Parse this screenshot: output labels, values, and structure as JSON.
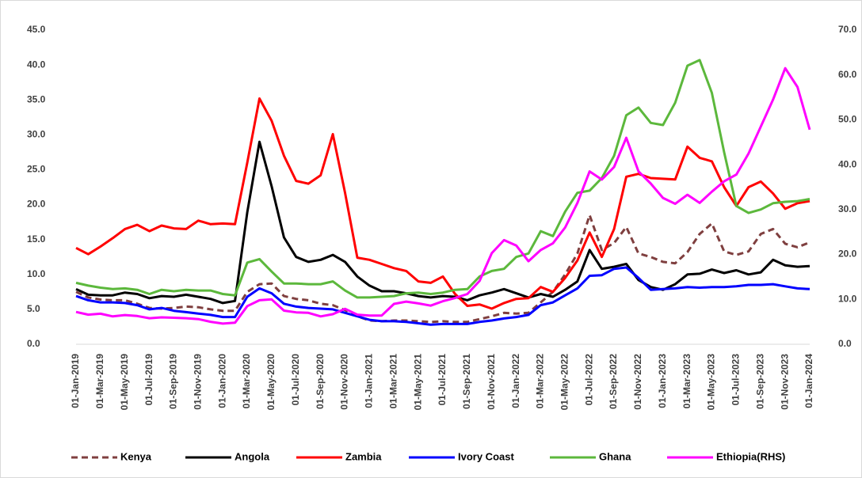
{
  "chart_data": {
    "type": "line",
    "categories": [
      "01-Jan-2019",
      null,
      "01-Mar-2019",
      null,
      "01-May-2019",
      null,
      "01-Jul-2019",
      null,
      "01-Sep-2019",
      null,
      "01-Nov-2019",
      null,
      "01-Jan-2020",
      null,
      "01-Mar-2020",
      null,
      "01-May-2020",
      null,
      "01-Jul-2020",
      null,
      "01-Sep-2020",
      null,
      "01-Nov-2020",
      null,
      "01-Jan-2021",
      null,
      "01-Mar-2021",
      null,
      "01-May-2021",
      null,
      "01-Jul-2021",
      null,
      "01-Sep-2021",
      null,
      "01-Nov-2021",
      null,
      "01-Jan-2022",
      null,
      "01-Mar-2022",
      null,
      "01-May-2022",
      null,
      "01-Jul-2022",
      null,
      "01-Sep-2022",
      null,
      "01-Nov-2022",
      null,
      "01-Jan-2023",
      null,
      "01-Mar-2023",
      null,
      "01-May-2023",
      null,
      "01-Jul-2023",
      null,
      "01-Sep-2023",
      null,
      "01-Nov-2023",
      null,
      "01-Jan-2024"
    ],
    "ylim": [
      0,
      45
    ],
    "yticks": [
      {
        "value": 0,
        "label": "0.0"
      },
      {
        "value": 5,
        "label": "5.0"
      },
      {
        "value": 10,
        "label": "10.0"
      },
      {
        "value": 15,
        "label": "15.0"
      },
      {
        "value": 20,
        "label": "20.0"
      },
      {
        "value": 25,
        "label": "25.0"
      },
      {
        "value": 30,
        "label": "30.0"
      },
      {
        "value": 35,
        "label": "35.0"
      },
      {
        "value": 40,
        "label": "40.0"
      },
      {
        "value": 45,
        "label": "45.0"
      }
    ],
    "y2lim": [
      0,
      70
    ],
    "y2ticks": [
      {
        "value": 0,
        "label": "0.0"
      },
      {
        "value": 10,
        "label": "10.0"
      },
      {
        "value": 20,
        "label": "20.0"
      },
      {
        "value": 30,
        "label": "30.0"
      },
      {
        "value": 40,
        "label": "40.0"
      },
      {
        "value": 50,
        "label": "50.0"
      },
      {
        "value": 60,
        "label": "60.0"
      },
      {
        "value": 70,
        "label": "70.0"
      }
    ],
    "legend": "bottom",
    "series": [
      {
        "name": "Kenya",
        "color": "#7f3f3f",
        "dashed": true,
        "values": [
          7.5,
          6.7,
          6.4,
          6.3,
          6.3,
          5.8,
          5.2,
          5.1,
          5.2,
          5.4,
          5.3,
          5.0,
          4.8,
          4.8,
          7.5,
          8.6,
          8.7,
          6.9,
          6.5,
          6.3,
          5.8,
          5.6,
          4.9,
          4.0,
          3.4,
          3.3,
          3.4,
          3.4,
          3.3,
          3.2,
          3.3,
          3.2,
          3.2,
          3.6,
          4.0,
          4.5,
          4.4,
          4.5,
          6.0,
          7.5,
          10.0,
          13.0,
          18.5,
          13.5,
          14.5,
          16.8,
          13.0,
          12.5,
          11.8,
          11.6,
          13.2,
          15.8,
          17.3,
          13.3,
          12.8,
          13.3,
          15.8,
          16.5,
          14.4,
          13.9,
          14.6
        ]
      },
      {
        "name": "Angola",
        "color": "#000000",
        "values": [
          7.9,
          7.1,
          7.0,
          7.0,
          7.4,
          7.2,
          6.6,
          6.9,
          6.8,
          7.1,
          6.8,
          6.5,
          5.9,
          6.2,
          18.9,
          29.0,
          22.6,
          15.3,
          12.5,
          11.8,
          12.1,
          12.8,
          11.8,
          9.7,
          8.4,
          7.6,
          7.6,
          7.3,
          6.9,
          6.7,
          6.9,
          6.8,
          6.3,
          7.0,
          7.4,
          7.9,
          7.3,
          6.7,
          7.2,
          6.8,
          7.8,
          9.0,
          13.5,
          10.8,
          11.1,
          11.5,
          9.2,
          8.2,
          7.8,
          8.6,
          10.0,
          10.1,
          10.7,
          10.2,
          10.6,
          10.0,
          10.3,
          12.1,
          11.3,
          11.1,
          11.2
        ]
      },
      {
        "name": "Zambia",
        "color": "#ff0000",
        "values": [
          13.8,
          12.9,
          14.0,
          15.2,
          16.5,
          17.1,
          16.2,
          17.0,
          16.6,
          16.5,
          17.7,
          17.2,
          17.3,
          17.2,
          26.0,
          35.2,
          32.0,
          27.0,
          23.4,
          23.0,
          24.2,
          30.1,
          21.7,
          12.4,
          12.1,
          11.5,
          10.9,
          10.5,
          9.0,
          8.8,
          9.7,
          7.2,
          5.5,
          5.7,
          5.1,
          5.9,
          6.5,
          6.6,
          8.2,
          7.5,
          9.5,
          12.0,
          16.0,
          12.5,
          16.5,
          24.0,
          24.4,
          23.8,
          23.7,
          23.6,
          28.3,
          26.7,
          26.2,
          22.5,
          19.8,
          22.5,
          23.3,
          21.6,
          19.4,
          20.2,
          20.5
        ]
      },
      {
        "name": "Ivory Coast",
        "color": "#0000ff",
        "values": [
          6.9,
          6.3,
          6.0,
          6.0,
          5.9,
          5.6,
          5.0,
          5.2,
          4.8,
          4.6,
          4.4,
          4.2,
          3.9,
          3.9,
          6.8,
          8.0,
          7.3,
          5.8,
          5.4,
          5.2,
          5.1,
          5.0,
          4.5,
          4.0,
          3.5,
          3.3,
          3.3,
          3.2,
          3.0,
          2.8,
          2.9,
          2.9,
          2.9,
          3.2,
          3.4,
          3.7,
          3.9,
          4.2,
          5.6,
          6.0,
          7.0,
          8.0,
          9.8,
          9.9,
          10.8,
          11.0,
          9.5,
          7.8,
          7.9,
          8.0,
          8.2,
          8.1,
          8.2,
          8.2,
          8.3,
          8.5,
          8.5,
          8.6,
          8.3,
          8.0,
          7.9
        ]
      },
      {
        "name": "Ghana",
        "color": "#5cb83c",
        "values": [
          8.8,
          8.4,
          8.1,
          7.9,
          8.0,
          7.8,
          7.2,
          7.8,
          7.6,
          7.8,
          7.7,
          7.7,
          7.2,
          7.0,
          11.7,
          12.2,
          10.4,
          8.7,
          8.7,
          8.6,
          8.6,
          9.0,
          7.7,
          6.7,
          6.7,
          6.8,
          6.9,
          7.3,
          7.4,
          7.2,
          7.4,
          7.8,
          7.9,
          9.7,
          10.5,
          10.8,
          12.5,
          13.0,
          16.2,
          15.5,
          19.0,
          21.7,
          22.0,
          23.8,
          27.0,
          32.8,
          33.9,
          31.7,
          31.4,
          34.6,
          39.9,
          40.7,
          36.0,
          27.5,
          19.8,
          18.8,
          19.3,
          20.2,
          20.4,
          20.5,
          20.8
        ]
      },
      {
        "name": "Ethiopia(RHS)",
        "color": "#ff00ff",
        "axis": "y2",
        "values": [
          7.2,
          6.6,
          6.8,
          6.2,
          6.5,
          6.3,
          5.8,
          6.0,
          5.9,
          5.8,
          5.6,
          5.0,
          4.6,
          4.8,
          8.5,
          9.8,
          10.0,
          7.5,
          7.1,
          7.0,
          6.2,
          6.7,
          7.9,
          6.6,
          6.4,
          6.4,
          9.0,
          9.5,
          9.1,
          8.6,
          9.6,
          10.3,
          11.2,
          14.1,
          20.3,
          23.2,
          22.0,
          18.5,
          21.0,
          22.5,
          26.0,
          31.5,
          38.5,
          36.7,
          39.5,
          46.0,
          38.5,
          35.8,
          32.6,
          31.3,
          33.3,
          31.5,
          34.0,
          36.3,
          37.8,
          42.5,
          48.5,
          54.5,
          61.5,
          57.3,
          47.8
        ]
      }
    ]
  }
}
